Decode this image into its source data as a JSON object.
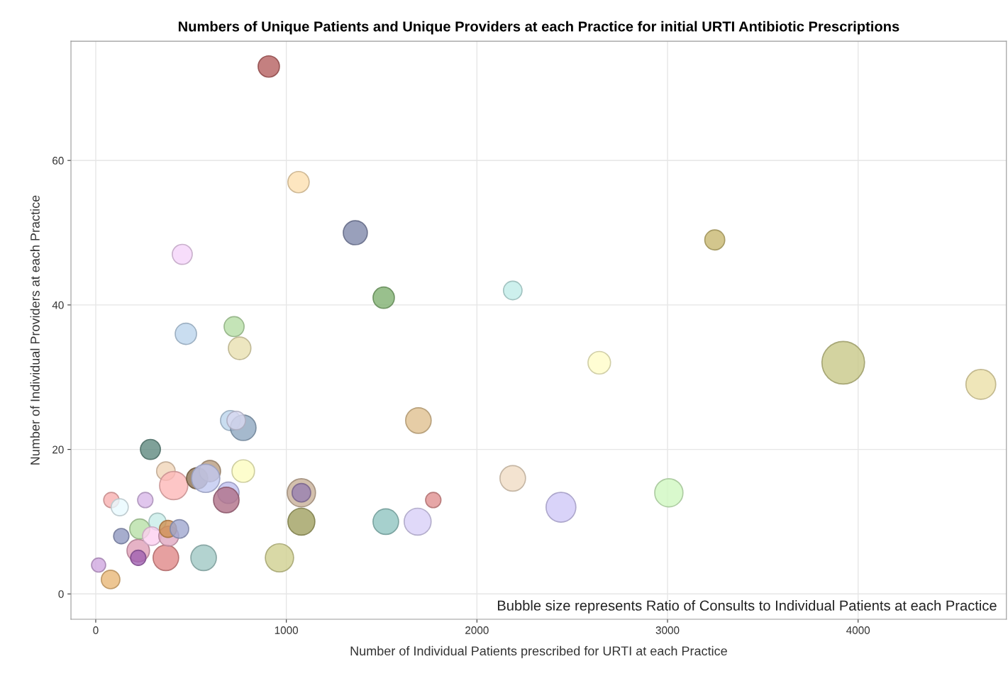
{
  "chart_data": {
    "type": "bubble",
    "title": "Numbers of Unique Patients and Unique Providers at each Practice for initial URTI Antibiotic Prescriptions",
    "xlabel": "Number of Individual Patients prescribed for URTI at each Practice",
    "ylabel": "Number of Individual Providers at each Practice",
    "annotations": [
      "Bubble size represents Ratio of Consults to Individual Patients at each Practice"
    ],
    "x": [
      908,
      1064,
      1362,
      454,
      1511,
      2188,
      3248,
      473,
      726,
      755,
      2642,
      3922,
      4644,
      1693,
      707,
      774,
      737,
      287,
      368,
      409,
      532,
      599,
      577,
      774,
      696,
      685,
      1079,
      1079,
      1079,
      1771,
      2188,
      3007,
      2441,
      1689,
      1522,
      964,
      566,
      368,
      223,
      223,
      15,
      78,
      82,
      126,
      260,
      134,
      231,
      324,
      294,
      383,
      379,
      439
    ],
    "values": [
      73,
      57,
      50,
      47,
      41,
      42,
      49,
      36,
      37,
      34,
      32,
      32,
      29,
      24,
      24,
      23,
      24,
      20,
      17,
      15,
      16,
      17,
      16,
      17,
      14,
      13,
      14,
      14,
      10,
      13,
      16,
      14,
      12,
      10,
      10,
      5,
      5,
      5,
      6,
      5,
      4,
      2,
      13,
      12,
      13,
      8,
      9,
      10,
      8,
      8,
      9,
      9
    ],
    "sizes": [
      0.25,
      0.25,
      0.32,
      0.22,
      0.25,
      0.19,
      0.22,
      0.25,
      0.22,
      0.28,
      0.28,
      1,
      0.49,
      0.36,
      0.22,
      0.36,
      0.19,
      0.22,
      0.19,
      0.44,
      0.25,
      0.25,
      0.44,
      0.28,
      0.25,
      0.36,
      0.44,
      0.19,
      0.4,
      0.13,
      0.36,
      0.44,
      0.49,
      0.4,
      0.36,
      0.44,
      0.36,
      0.36,
      0.28,
      0.13,
      0.11,
      0.19,
      0.13,
      0.16,
      0.13,
      0.13,
      0.22,
      0.16,
      0.19,
      0.22,
      0.16,
      0.19
    ],
    "colors": [
      "#b56060",
      "#fde0b0",
      "#7f88aa",
      "#f5d5fa",
      "#80b070",
      "#c0ece8",
      "#c8b870",
      "#bcd4ec",
      "#b5dda5",
      "#e8e0b0",
      "#fffcc8",
      "#c8c888",
      "#ebe0a8",
      "#e0c090",
      "#bcd4ec",
      "#8fa8c0",
      "#d8d8f0",
      "#5f8a80",
      "#f0d4b8",
      "#fdb8b8",
      "#8c7050",
      "#b89c80",
      "#c0c8f0",
      "#fcfcc0",
      "#c0c0f0",
      "#b07088",
      "#c8b098",
      "#9880b0",
      "#a0a060",
      "#e09090",
      "#f0dcc4",
      "#d0f8c0",
      "#d0c8f8",
      "#d8d0f8",
      "#90c4c0",
      "#d0d090",
      "#a0c8c4",
      "#e08888",
      "#e0a0b8",
      "#a060b0",
      "#d0a8e0",
      "#e8b878",
      "#f8b0b0",
      "#e8faff",
      "#d8b8e8",
      "#9098c0",
      "#b8e0a8",
      "#c8ece8",
      "#fcd0f0",
      "#e0a8c0",
      "#d09050",
      "#a0a8d0"
    ],
    "xlim": [
      -130,
      4778
    ],
    "ylim": [
      -3.5,
      76.5
    ],
    "xticks": [
      0,
      1000,
      2000,
      3000,
      4000
    ],
    "yticks": [
      0,
      20,
      40,
      60
    ],
    "grid": true
  }
}
